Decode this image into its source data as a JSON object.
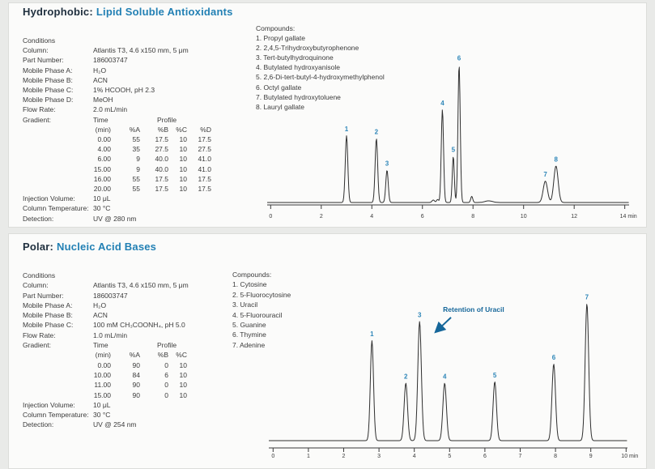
{
  "page": {
    "background": "#e9eae8",
    "card_background": "#fbfbfa",
    "accent_blue": "#2280b4",
    "heading_navy": "#20303f",
    "peak_label_blue": "#2e86b8",
    "annotation_blue": "#16679a",
    "body_text": "#3b3b3b",
    "trace_color": "#2f2f2f",
    "axis_color": "#3a3a3a"
  },
  "sections": [
    {
      "heading": {
        "prefix": "Hydrophobic:",
        "title": "Lipid Soluble Antioxidants"
      },
      "conditions": {
        "header": "Conditions",
        "rows": [
          {
            "label": "Column:",
            "value": "Atlantis T3, 4.6 x150 mm, 5 μm"
          },
          {
            "label": "Part Number:",
            "value": "186003747"
          },
          {
            "label": "Mobile Phase A:",
            "value": "H₂O"
          },
          {
            "label": "Mobile Phase B:",
            "value": "ACN"
          },
          {
            "label": "Mobile Phase C:",
            "value": "1% HCOOH, pH 2.3"
          },
          {
            "label": "Mobile Phase D:",
            "value": "MeOH"
          },
          {
            "label": "Flow Rate:",
            "value": "2.0 mL/min"
          }
        ],
        "gradient": {
          "label": "Gradient:",
          "time_header": "Time",
          "profile_header": "Profile",
          "columns": [
            "(min)",
            "%A",
            "%B",
            "%C",
            "%D"
          ],
          "rows": [
            [
              "0.00",
              "55",
              "17.5",
              "10",
              "17.5"
            ],
            [
              "4.00",
              "35",
              "27.5",
              "10",
              "27.5"
            ],
            [
              "6.00",
              "9",
              "40.0",
              "10",
              "41.0"
            ],
            [
              "15.00",
              "9",
              "40.0",
              "10",
              "41.0"
            ],
            [
              "16.00",
              "55",
              "17.5",
              "10",
              "17.5"
            ],
            [
              "20.00",
              "55",
              "17.5",
              "10",
              "17.5"
            ]
          ]
        },
        "footer_rows": [
          {
            "label": "Injection Volume:",
            "value": "10 μL"
          },
          {
            "label": "Column Temperature:",
            "value": "30 °C"
          },
          {
            "label": "Detection:",
            "value": "UV @ 280 nm"
          }
        ]
      },
      "compounds": {
        "header": "Compounds:",
        "items": [
          "1. Propyl gallate",
          "2. 2,4,5-Trihydroxybutyrophenone",
          "3. Tert-butylhydroquinone",
          "4. Butylated hydroxyanisole",
          "5. 2,6-Di-tert-butyl-4-hydroxymethylphenol",
          "6. Octyl gallate",
          "7. Butylated hydroxytoluene",
          "8. Lauryl gallate"
        ]
      }
    },
    {
      "heading": {
        "prefix": "Polar:",
        "title": "Nucleic Acid Bases"
      },
      "conditions": {
        "header": "Conditions",
        "rows": [
          {
            "label": "Column:",
            "value": "Atlantis T3, 4.6 x150 mm, 5 μm"
          },
          {
            "label": "Part Number:",
            "value": "186003747"
          },
          {
            "label": "Mobile Phase A:",
            "value": "H₂O"
          },
          {
            "label": "Mobile Phase B:",
            "value": "ACN"
          },
          {
            "label": "Mobile Phase C:",
            "value": "100 mM CH₃COONH₄, pH 5.0"
          },
          {
            "label": "Flow Rate:",
            "value": "1.0 mL/min"
          }
        ],
        "gradient": {
          "label": "Gradient:",
          "time_header": "Time",
          "profile_header": "Profile",
          "columns": [
            "(min)",
            "%A",
            "%B",
            "%C"
          ],
          "rows": [
            [
              "0.00",
              "90",
              "0",
              "10"
            ],
            [
              "10.00",
              "84",
              "6",
              "10"
            ],
            [
              "11.00",
              "90",
              "0",
              "10"
            ],
            [
              "15.00",
              "90",
              "0",
              "10"
            ]
          ]
        },
        "footer_rows": [
          {
            "label": "Injection Volume:",
            "value": "10 μL"
          },
          {
            "label": "Column Temperature:",
            "value": "30 °C"
          },
          {
            "label": "Detection:",
            "value": "UV @ 254 nm"
          }
        ]
      },
      "compounds": {
        "header": "Compounds:",
        "items": [
          "1. Cytosine",
          "2. 5-Fluorocytosine",
          "3. Uracil",
          "4. 5-Fluorouracil",
          "5. Guanine",
          "6. Thymine",
          "7. Adenine"
        ]
      }
    }
  ],
  "chart_data": [
    {
      "type": "line",
      "title": "Hydrophobic: Lipid Soluble Antioxidants chromatogram",
      "xlabel": "min",
      "ylabel": "",
      "xlim": [
        0,
        14
      ],
      "xticks": [
        0,
        2,
        4,
        6,
        8,
        10,
        12,
        14
      ],
      "x_unit": "min",
      "legend": "none",
      "grid": false,
      "peaks": [
        {
          "label": "1",
          "rt": 3.0,
          "rel_height": 0.485,
          "sigma": 0.05
        },
        {
          "label": "2",
          "rt": 4.18,
          "rel_height": 0.465,
          "sigma": 0.05
        },
        {
          "label": "3",
          "rt": 4.6,
          "rel_height": 0.235,
          "sigma": 0.048
        },
        {
          "label": "4",
          "rt": 6.79,
          "rel_height": 0.675,
          "sigma": 0.045
        },
        {
          "label": "5",
          "rt": 7.22,
          "rel_height": 0.335,
          "sigma": 0.04
        },
        {
          "label": "6",
          "rt": 7.45,
          "rel_height": 1.0,
          "sigma": 0.045
        },
        {
          "label": "7",
          "rt": 10.86,
          "rel_height": 0.155,
          "sigma": 0.085
        },
        {
          "label": "8",
          "rt": 11.28,
          "rel_height": 0.265,
          "sigma": 0.085
        }
      ],
      "baseline_blips": [
        {
          "rt": 6.43,
          "rel_height": 0.018,
          "sigma": 0.05
        },
        {
          "rt": 6.6,
          "rel_height": 0.022,
          "sigma": 0.04
        },
        {
          "rt": 7.95,
          "rel_height": 0.045,
          "sigma": 0.04
        },
        {
          "rt": 8.62,
          "rel_height": 0.012,
          "sigma": 0.15
        }
      ]
    },
    {
      "type": "line",
      "title": "Polar: Nucleic Acid Bases chromatogram",
      "xlabel": "min",
      "ylabel": "",
      "xlim": [
        0,
        10
      ],
      "xticks": [
        0,
        1,
        2,
        3,
        4,
        5,
        6,
        7,
        8,
        9,
        10
      ],
      "x_unit": "min",
      "legend": "none",
      "grid": false,
      "peaks": [
        {
          "label": "1",
          "rt": 2.8,
          "rel_height": 0.73,
          "sigma": 0.045
        },
        {
          "label": "2",
          "rt": 3.76,
          "rel_height": 0.42,
          "sigma": 0.048
        },
        {
          "label": "3",
          "rt": 4.15,
          "rel_height": 0.87,
          "sigma": 0.05
        },
        {
          "label": "4",
          "rt": 4.86,
          "rel_height": 0.42,
          "sigma": 0.05
        },
        {
          "label": "5",
          "rt": 6.28,
          "rel_height": 0.43,
          "sigma": 0.048
        },
        {
          "label": "6",
          "rt": 7.95,
          "rel_height": 0.56,
          "sigma": 0.05
        },
        {
          "label": "7",
          "rt": 8.89,
          "rel_height": 1.0,
          "sigma": 0.05
        }
      ],
      "baseline_blips": [],
      "annotation": {
        "text": "Retention of Uracil",
        "text_rt": 5.68,
        "text_rel_height": 0.94,
        "arrow_from_rt": 5.04,
        "arrow_from_rel_height": 0.9,
        "arrow_to_rt": 4.63,
        "arrow_to_rel_height": 0.8
      }
    }
  ]
}
